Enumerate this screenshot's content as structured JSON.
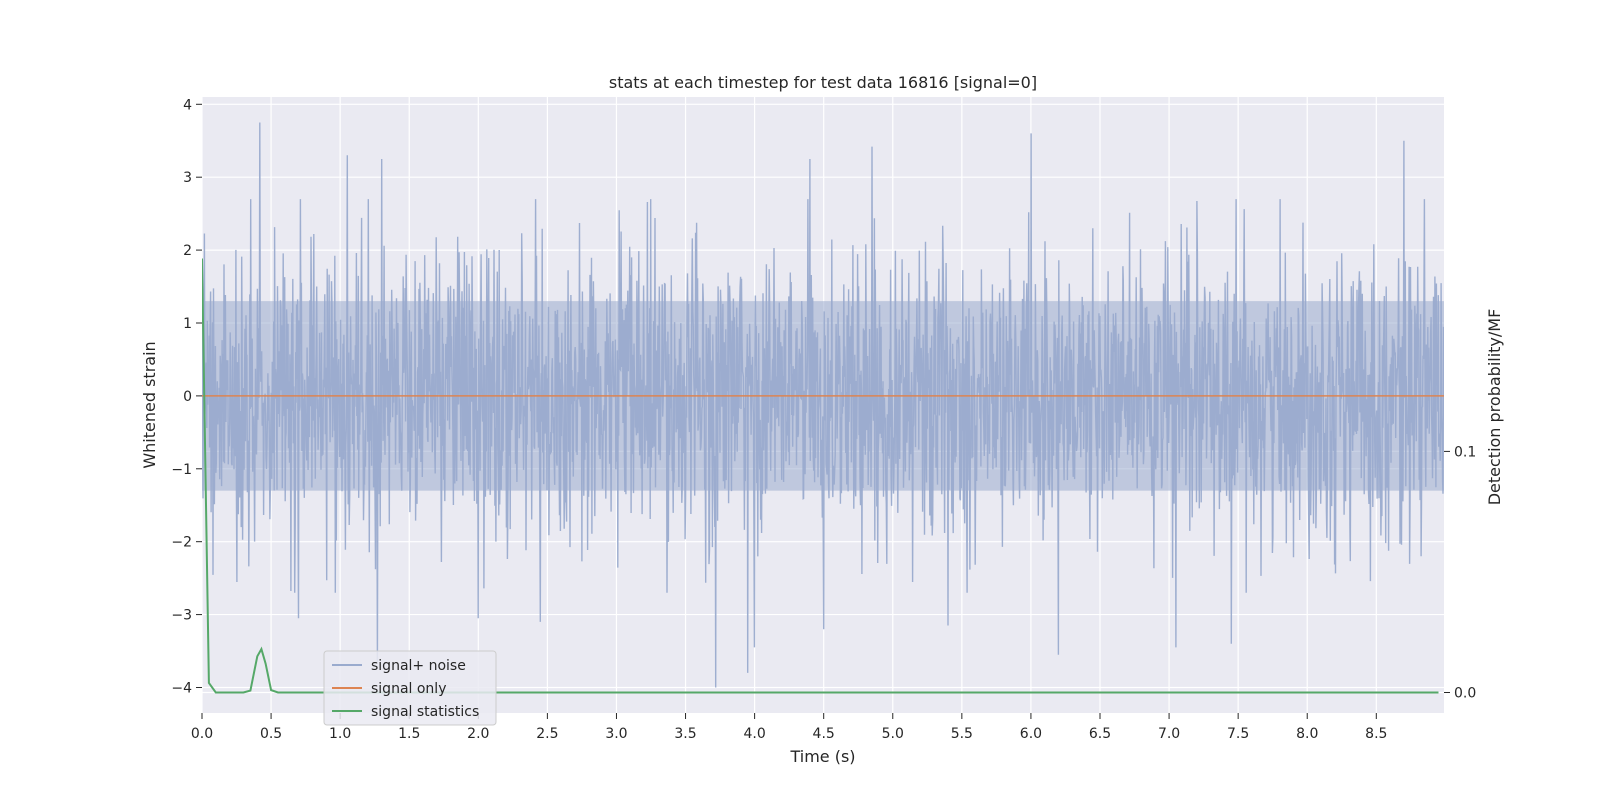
{
  "chart_data": {
    "type": "line",
    "title": "stats at each timestep for test data 16816 [signal=0]",
    "xlabel": "Time (s)",
    "ylabel": "Whitened strain",
    "y2label": "Detection probability/MF",
    "xlim": [
      0,
      8.99
    ],
    "ylim": [
      -4.35,
      4.1
    ],
    "y2lim": [
      -0.0085,
      0.247
    ],
    "x_ticks": [
      0.0,
      0.5,
      1.0,
      1.5,
      2.0,
      2.5,
      3.0,
      3.5,
      4.0,
      4.5,
      5.0,
      5.5,
      6.0,
      6.5,
      7.0,
      7.5,
      8.0,
      8.5
    ],
    "x_tick_labels": [
      "0.0",
      "0.5",
      "1.0",
      "1.5",
      "2.0",
      "2.5",
      "3.0",
      "3.5",
      "4.0",
      "4.5",
      "5.0",
      "5.5",
      "6.0",
      "6.5",
      "7.0",
      "7.5",
      "8.0",
      "8.5"
    ],
    "y_ticks": [
      -4,
      -3,
      -2,
      -1,
      0,
      1,
      2,
      3,
      4
    ],
    "y_tick_labels": [
      "−4",
      "−3",
      "−2",
      "−1",
      "0",
      "1",
      "2",
      "3",
      "4"
    ],
    "y2_ticks": [
      0.0,
      0.1
    ],
    "y2_tick_labels": [
      "0.0",
      "0.1"
    ],
    "grid": true,
    "legend_position": "lower-left",
    "colors": {
      "background": "#eaeaf2",
      "grid": "#ffffff",
      "noise": "#9aabce",
      "signal": "#dd8452",
      "stats": "#55a868",
      "text": "#262626"
    },
    "series": [
      {
        "name": "signal+ noise",
        "axis": "left",
        "description_type": "dense noise",
        "x_range": [
          0,
          8.99
        ],
        "typical_range": [
          -2.0,
          2.0
        ],
        "peaks": [
          [
            0.42,
            3.75
          ],
          [
            1.05,
            3.3
          ],
          [
            1.3,
            3.25
          ],
          [
            4.4,
            3.25
          ],
          [
            4.85,
            3.42
          ],
          [
            6.0,
            3.6
          ],
          [
            8.7,
            3.5
          ],
          [
            3.72,
            -4.0
          ],
          [
            3.95,
            -3.8
          ],
          [
            1.27,
            -3.65
          ],
          [
            6.2,
            -3.55
          ],
          [
            7.45,
            -3.4
          ],
          [
            7.05,
            -3.45
          ],
          [
            4.0,
            -3.45
          ],
          [
            0.7,
            -3.05
          ],
          [
            2.0,
            -3.05
          ],
          [
            2.45,
            -3.1
          ],
          [
            5.4,
            -3.15
          ],
          [
            4.5,
            -3.2
          ]
        ]
      },
      {
        "name": "signal only",
        "axis": "left",
        "x": [
          0,
          8.99
        ],
        "y": [
          0,
          0
        ]
      },
      {
        "name": "signal statistics",
        "axis": "right",
        "x": [
          0.0,
          0.05,
          0.1,
          0.15,
          0.2,
          0.25,
          0.3,
          0.35,
          0.4,
          0.43,
          0.46,
          0.5,
          0.55,
          0.6,
          0.65,
          0.7,
          8.95
        ],
        "y": [
          0.18,
          0.004,
          0.0,
          0.0,
          0.0,
          0.0,
          0.0,
          0.0008,
          0.015,
          0.018,
          0.012,
          0.001,
          0.0,
          0.0,
          0.0,
          0.0,
          0.0
        ]
      }
    ],
    "legend": [
      "signal+ noise",
      "signal only",
      "signal statistics"
    ]
  }
}
